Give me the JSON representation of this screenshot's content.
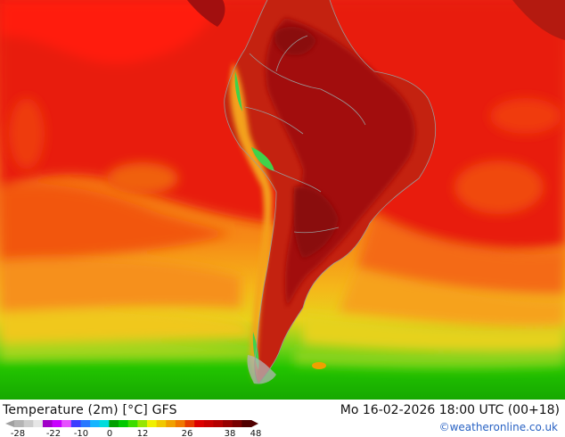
{
  "map": {
    "title": "Temperature (2m) [°C] GFS",
    "valid_time": "Mo 16-02-2026 18:00 UTC (00+18)",
    "credit": "©weatheronline.co.uk"
  },
  "legend": {
    "tick_labels": [
      "-28",
      "-22",
      "-10",
      "0",
      "12",
      "26",
      "38",
      "48"
    ],
    "tick_values": [
      -28,
      -22,
      -10,
      0,
      12,
      26,
      38,
      48
    ],
    "range": [
      -28,
      48
    ],
    "colors": [
      "#b4b4b4",
      "#cccccc",
      "#e6e6e6",
      "#a000c8",
      "#c800ff",
      "#e650ff",
      "#3c3cff",
      "#2878ff",
      "#14b4ff",
      "#00dcdc",
      "#00a000",
      "#00c800",
      "#3cdc00",
      "#96e600",
      "#f0f000",
      "#f0c800",
      "#f0a000",
      "#f07800",
      "#e63c00",
      "#dc0000",
      "#c80000",
      "#b40000",
      "#960000",
      "#780000",
      "#500000"
    ]
  },
  "palette": {
    "ocean_red": "#e81c08",
    "ocean_orange": "#f46a12",
    "ocean_yellow": "#f5b71a",
    "ocean_green": "#22c400",
    "land_dark": "#a20f0f",
    "land_mid": "#c42210",
    "andes_green": "#3fd24a",
    "credit_blue": "#2a63c4"
  }
}
